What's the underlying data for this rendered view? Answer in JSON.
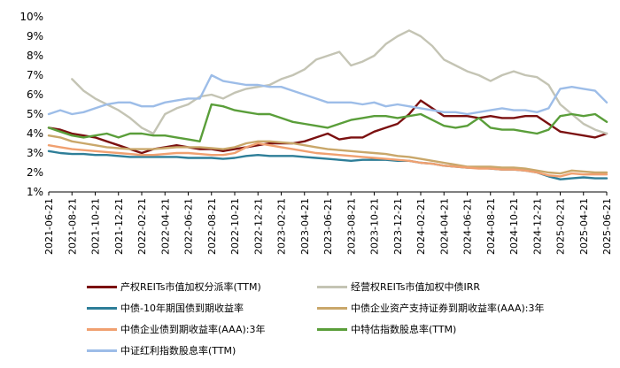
{
  "chart_data": {
    "type": "line",
    "title": "",
    "xlabel": "",
    "ylabel": "",
    "ylim": [
      1,
      10
    ],
    "y_ticks": [
      "1%",
      "2%",
      "3%",
      "4%",
      "5%",
      "6%",
      "7%",
      "8%",
      "9%",
      "10%"
    ],
    "x_range": [
      "2021-06-21",
      "2025-06-21"
    ],
    "x_ticks": [
      "2021-06-21",
      "2021-08-21",
      "2021-10-21",
      "2021-12-21",
      "2022-02-21",
      "2022-04-21",
      "2022-06-21",
      "2022-08-21",
      "2022-10-21",
      "2022-12-21",
      "2023-02-21",
      "2023-04-21",
      "2023-06-21",
      "2023-08-21",
      "2023-10-21",
      "2023-12-21",
      "2024-02-21",
      "2024-04-21",
      "2024-06-21",
      "2024-08-21",
      "2024-10-21",
      "2024-12-21",
      "2025-02-21",
      "2025-04-21",
      "2025-06-21"
    ],
    "grid": false,
    "legend_position": "bottom",
    "series": [
      {
        "name": "产权REITs市值加权分派率(TTM)",
        "color": "#7b1010",
        "x": [
          0,
          1,
          2,
          3,
          4,
          5,
          6,
          7,
          8,
          9,
          10,
          11,
          12,
          13,
          14,
          15,
          16,
          17,
          18,
          19,
          20,
          21,
          22,
          23,
          24,
          25,
          26,
          27,
          28,
          29,
          30,
          31,
          32,
          33,
          34,
          35,
          36,
          37,
          38,
          39,
          40,
          41,
          42,
          43,
          44,
          45,
          46,
          47,
          48
        ],
        "values": [
          4.3,
          4.2,
          4.0,
          3.9,
          3.8,
          3.6,
          3.4,
          3.2,
          3.0,
          3.2,
          3.3,
          3.4,
          3.3,
          3.2,
          3.2,
          3.1,
          3.2,
          3.3,
          3.4,
          3.5,
          3.5,
          3.5,
          3.6,
          3.8,
          4.0,
          3.7,
          3.8,
          3.8,
          4.1,
          4.3,
          4.5,
          5.0,
          5.7,
          5.3,
          4.9,
          4.9,
          4.9,
          4.8,
          4.9,
          4.8,
          4.8,
          4.9,
          4.9,
          4.5,
          4.1,
          4.0,
          3.9,
          3.8,
          4.0
        ]
      },
      {
        "name": "经营权REITs市值加权中债IRR",
        "color": "#c4c4b4",
        "x": [
          2,
          3,
          4,
          5,
          6,
          7,
          8,
          9,
          10,
          11,
          12,
          13,
          14,
          15,
          16,
          17,
          18,
          19,
          20,
          21,
          22,
          23,
          24,
          25,
          26,
          27,
          28,
          29,
          30,
          31,
          32,
          33,
          34,
          35,
          36,
          37,
          38,
          39,
          40,
          41,
          42,
          43,
          44,
          45,
          46,
          47,
          48
        ],
        "values": [
          6.8,
          6.2,
          5.8,
          5.5,
          5.2,
          4.8,
          4.3,
          4.0,
          5.0,
          5.3,
          5.5,
          5.9,
          6.0,
          5.8,
          6.1,
          6.3,
          6.4,
          6.5,
          6.8,
          7.0,
          7.3,
          7.8,
          8.0,
          8.2,
          7.5,
          7.7,
          8.0,
          8.6,
          9.0,
          9.3,
          9.0,
          8.5,
          7.8,
          7.5,
          7.2,
          7.0,
          6.7,
          7.0,
          7.2,
          7.0,
          6.9,
          6.5,
          5.5,
          5.0,
          4.5,
          4.2,
          4.0
        ]
      },
      {
        "name": "中债-10年期国债到期收益率",
        "color": "#2e7e98",
        "x": [
          0,
          1,
          2,
          3,
          4,
          5,
          6,
          7,
          8,
          9,
          10,
          11,
          12,
          13,
          14,
          15,
          16,
          17,
          18,
          19,
          20,
          21,
          22,
          23,
          24,
          25,
          26,
          27,
          28,
          29,
          30,
          31,
          32,
          33,
          34,
          35,
          36,
          37,
          38,
          39,
          40,
          41,
          42,
          43,
          44,
          45,
          46,
          47,
          48
        ],
        "values": [
          3.1,
          3.0,
          2.95,
          2.95,
          2.9,
          2.9,
          2.85,
          2.8,
          2.8,
          2.8,
          2.8,
          2.8,
          2.75,
          2.75,
          2.75,
          2.7,
          2.75,
          2.85,
          2.9,
          2.85,
          2.85,
          2.85,
          2.8,
          2.75,
          2.7,
          2.65,
          2.6,
          2.65,
          2.65,
          2.65,
          2.6,
          2.6,
          2.5,
          2.45,
          2.35,
          2.3,
          2.25,
          2.25,
          2.2,
          2.15,
          2.15,
          2.1,
          2.0,
          1.8,
          1.65,
          1.7,
          1.75,
          1.7,
          1.7
        ]
      },
      {
        "name": "中债企业资产支持证券到期收益率(AAA):3年",
        "color": "#c9a76a",
        "x": [
          0,
          1,
          2,
          3,
          4,
          5,
          6,
          7,
          8,
          9,
          10,
          11,
          12,
          13,
          14,
          15,
          16,
          17,
          18,
          19,
          20,
          21,
          22,
          23,
          24,
          25,
          26,
          27,
          28,
          29,
          30,
          31,
          32,
          33,
          34,
          35,
          36,
          37,
          38,
          39,
          40,
          41,
          42,
          43,
          44,
          45,
          46,
          47,
          48
        ],
        "values": [
          3.9,
          3.8,
          3.6,
          3.5,
          3.4,
          3.3,
          3.25,
          3.2,
          3.2,
          3.2,
          3.25,
          3.3,
          3.3,
          3.3,
          3.25,
          3.2,
          3.3,
          3.5,
          3.6,
          3.6,
          3.55,
          3.5,
          3.4,
          3.3,
          3.2,
          3.15,
          3.1,
          3.05,
          3.0,
          2.95,
          2.85,
          2.8,
          2.7,
          2.6,
          2.5,
          2.4,
          2.3,
          2.3,
          2.3,
          2.25,
          2.25,
          2.2,
          2.1,
          2.0,
          1.95,
          2.1,
          2.05,
          2.0,
          2.0
        ]
      },
      {
        "name": "中债企业债到期收益率(AAA):3年",
        "color": "#f0a070",
        "x": [
          0,
          1,
          2,
          3,
          4,
          5,
          6,
          7,
          8,
          9,
          10,
          11,
          12,
          13,
          14,
          15,
          16,
          17,
          18,
          19,
          20,
          21,
          22,
          23,
          24,
          25,
          26,
          27,
          28,
          29,
          30,
          31,
          32,
          33,
          34,
          35,
          36,
          37,
          38,
          39,
          40,
          41,
          42,
          43,
          44,
          45,
          46,
          47,
          48
        ],
        "values": [
          3.4,
          3.3,
          3.2,
          3.15,
          3.1,
          3.05,
          3.0,
          2.95,
          2.9,
          2.9,
          2.95,
          3.0,
          3.0,
          2.95,
          2.9,
          2.9,
          3.0,
          3.3,
          3.5,
          3.4,
          3.3,
          3.2,
          3.1,
          3.0,
          2.95,
          2.9,
          2.85,
          2.8,
          2.75,
          2.7,
          2.65,
          2.6,
          2.5,
          2.45,
          2.35,
          2.3,
          2.25,
          2.2,
          2.2,
          2.15,
          2.15,
          2.1,
          2.0,
          1.85,
          1.8,
          1.95,
          1.9,
          1.9,
          1.9
        ]
      },
      {
        "name": "中特估指数股息率(TTM)",
        "color": "#5a9e3a",
        "x": [
          0,
          1,
          2,
          3,
          4,
          5,
          6,
          7,
          8,
          9,
          10,
          11,
          12,
          13,
          14,
          15,
          16,
          17,
          18,
          19,
          20,
          21,
          22,
          23,
          24,
          25,
          26,
          27,
          28,
          29,
          30,
          31,
          32,
          33,
          34,
          35,
          36,
          37,
          38,
          39,
          40,
          41,
          42,
          43,
          44,
          45,
          46,
          47,
          48
        ],
        "values": [
          4.3,
          4.1,
          3.9,
          3.8,
          3.9,
          4.0,
          3.8,
          4.0,
          4.0,
          3.9,
          3.9,
          3.8,
          3.7,
          3.6,
          5.5,
          5.4,
          5.2,
          5.1,
          5.0,
          5.0,
          4.8,
          4.6,
          4.5,
          4.4,
          4.3,
          4.5,
          4.7,
          4.8,
          4.9,
          4.9,
          4.8,
          4.9,
          5.0,
          4.7,
          4.4,
          4.3,
          4.4,
          4.8,
          4.3,
          4.2,
          4.2,
          4.1,
          4.0,
          4.2,
          4.9,
          5.0,
          4.9,
          5.0,
          4.6
        ]
      },
      {
        "name": "中证红利指数股息率(TTM)",
        "color": "#9dbde8",
        "x": [
          0,
          1,
          2,
          3,
          4,
          5,
          6,
          7,
          8,
          9,
          10,
          11,
          12,
          13,
          14,
          15,
          16,
          17,
          18,
          19,
          20,
          21,
          22,
          23,
          24,
          25,
          26,
          27,
          28,
          29,
          30,
          31,
          32,
          33,
          34,
          35,
          36,
          37,
          38,
          39,
          40,
          41,
          42,
          43,
          44,
          45,
          46,
          47,
          48
        ],
        "values": [
          5.0,
          5.2,
          5.0,
          5.1,
          5.3,
          5.5,
          5.6,
          5.6,
          5.4,
          5.4,
          5.6,
          5.7,
          5.8,
          5.8,
          7.0,
          6.7,
          6.6,
          6.5,
          6.5,
          6.4,
          6.4,
          6.2,
          6.0,
          5.8,
          5.6,
          5.6,
          5.6,
          5.5,
          5.6,
          5.4,
          5.5,
          5.4,
          5.3,
          5.2,
          5.1,
          5.1,
          5.0,
          5.1,
          5.2,
          5.3,
          5.2,
          5.2,
          5.1,
          5.3,
          6.3,
          6.4,
          6.3,
          6.2,
          5.6
        ]
      }
    ]
  }
}
